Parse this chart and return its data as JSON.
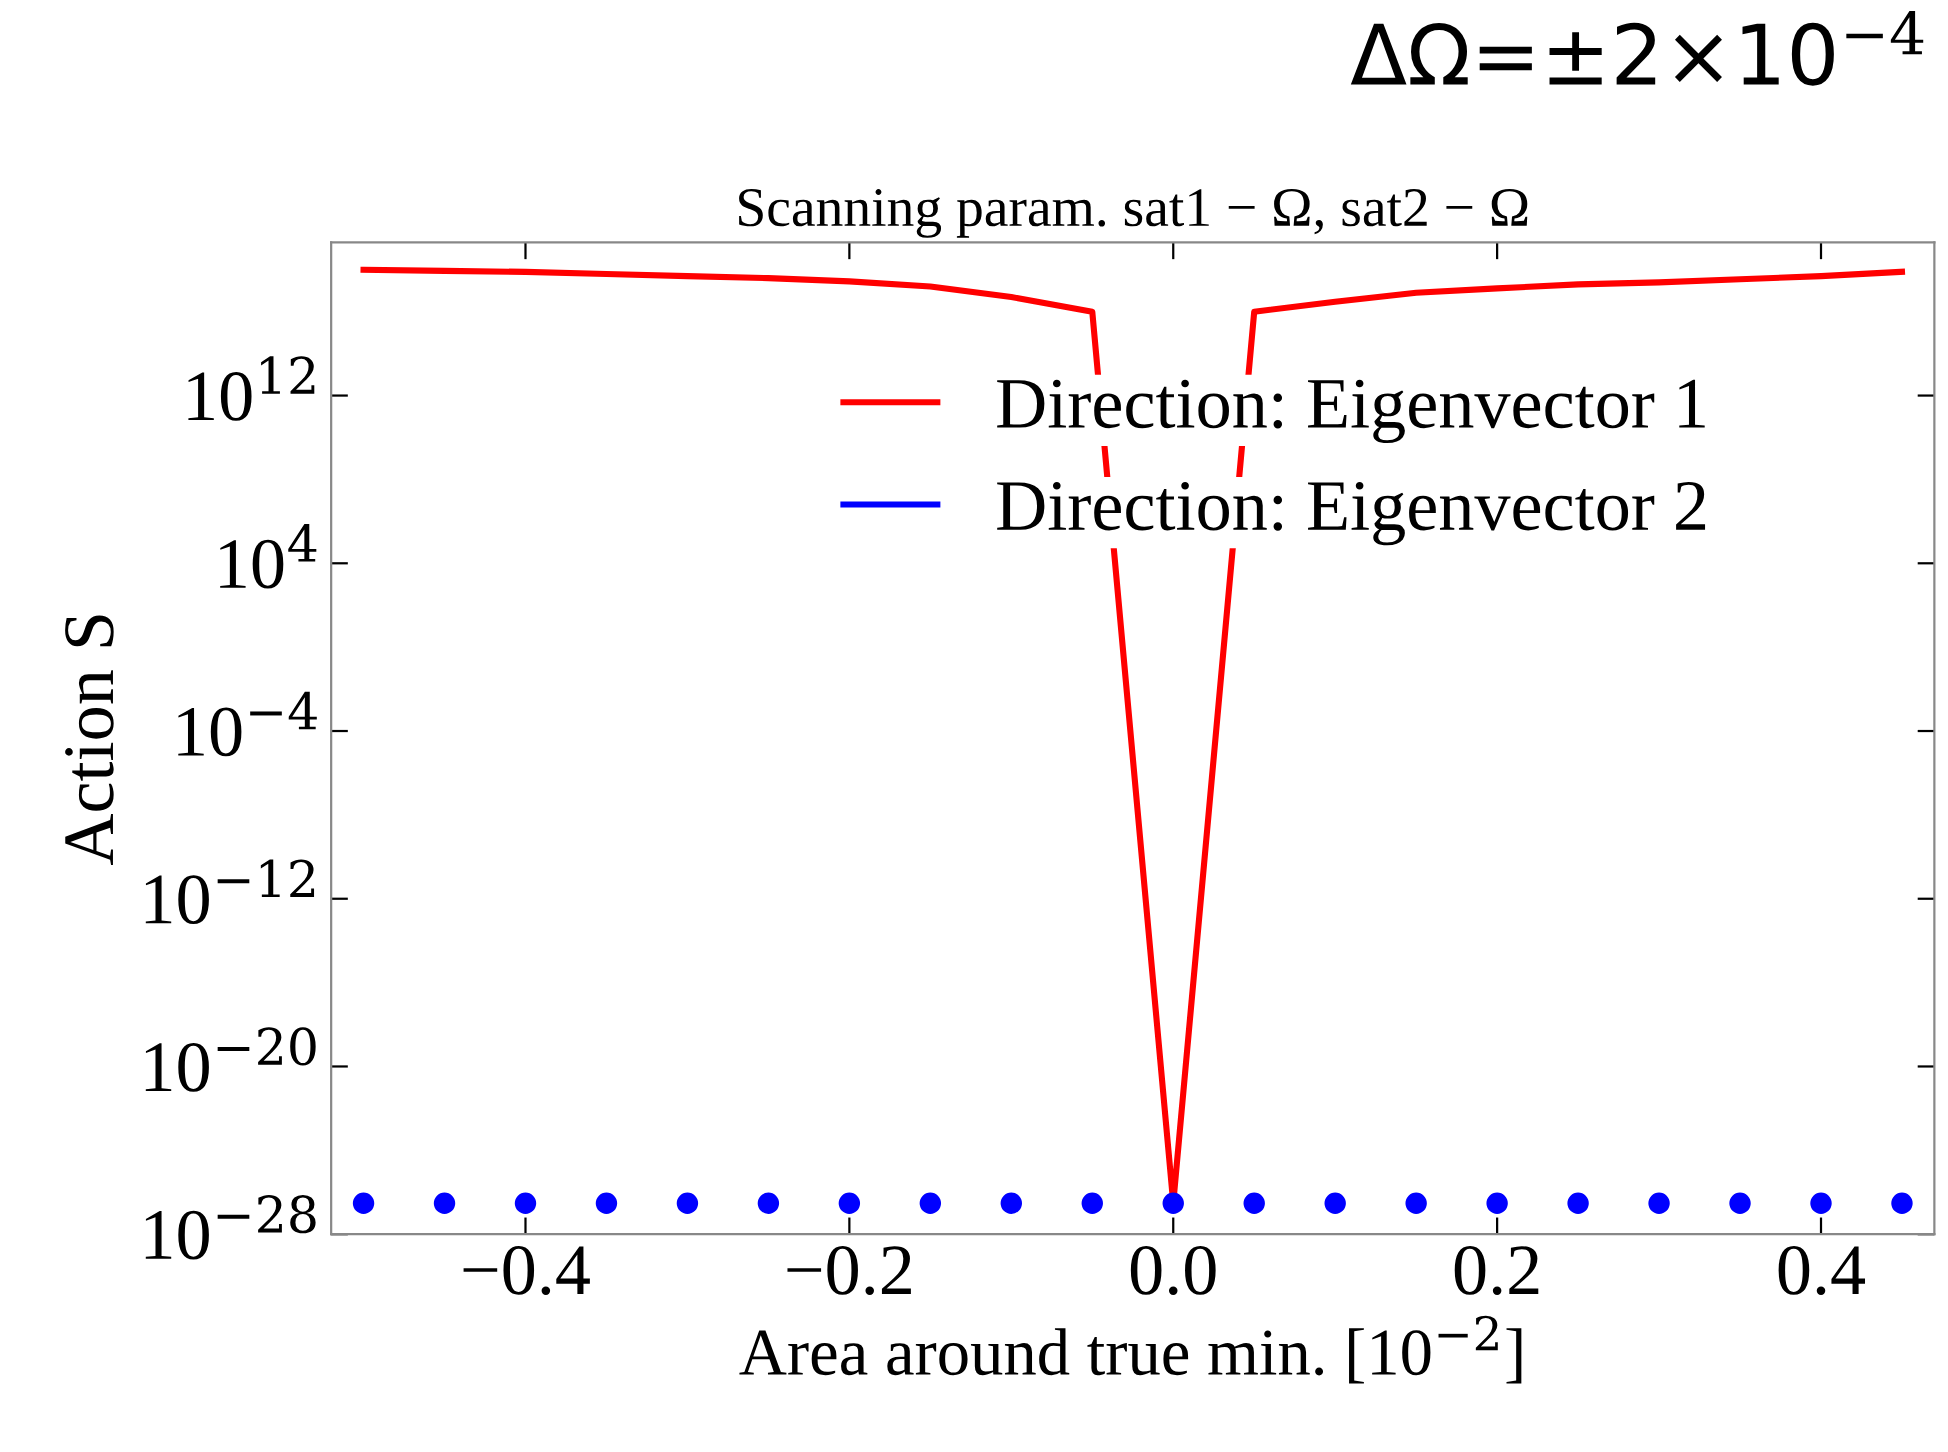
{
  "chart_data": {
    "type": "line",
    "title": "Scanning param. sat1 − Ω, sat2 − Ω",
    "xlabel": "Area around true min. [10$^{−2}$]",
    "ylabel": "Action S",
    "annotations": [
      "ΔΩ=±2×10$^{−4}$"
    ],
    "x": [
      -0.5,
      -0.45,
      -0.4,
      -0.35,
      -0.3,
      -0.25,
      -0.2,
      -0.15,
      -0.1,
      -0.05,
      0.0,
      0.05,
      0.1,
      0.15,
      0.2,
      0.25,
      0.3,
      0.35,
      0.4,
      0.45
    ],
    "series": [
      {
        "name": "Direction: Eigenvector 1",
        "color": "#ff0000",
        "values": [
          1e+18,
          8.9e+17,
          7.9e+17,
          6.3e+17,
          5e+17,
          4e+17,
          2.8e+17,
          1.6e+17,
          5e+16,
          1e+16,
          3e-27,
          1e+16,
          3e+16,
          8e+16,
          1.3e+17,
          2e+17,
          2.5e+17,
          3.5e+17,
          5e+17,
          8e+17
        ]
      },
      {
        "name": "Direction: Eigenvector 2",
        "color": "#0000ff",
        "type": "scatter",
        "marker": "circle",
        "values": [
          3e-27,
          3e-27,
          3e-27,
          3e-27,
          3e-27,
          3e-27,
          3e-27,
          3e-27,
          3e-27,
          3e-27,
          3e-27,
          3e-27,
          3e-27,
          3e-27,
          3e-27,
          3e-27,
          3e-27,
          3e-27,
          3e-27,
          3e-27
        ]
      }
    ],
    "log": "y",
    "xlim": [
      -0.52,
      0.47
    ],
    "ylim": [
      1e-28,
      2e+19
    ],
    "xticks": [
      {
        "value": -0.4,
        "label": "−0.4"
      },
      {
        "value": -0.2,
        "label": "−0.2"
      },
      {
        "value": 0.0,
        "label": "0.0"
      },
      {
        "value": 0.2,
        "label": "0.2"
      },
      {
        "value": 0.4,
        "label": "0.4"
      }
    ],
    "yticks": [
      {
        "value": 1e-28,
        "label": "10$^{−28}$"
      },
      {
        "value": 1e-20,
        "label": "10$^{−20}$"
      },
      {
        "value": 1e-12,
        "label": "10$^{−12}$"
      },
      {
        "value": 0.0001,
        "label": "10$^{−4}$"
      },
      {
        "value": 10000,
        "label": "10$^{4}$"
      },
      {
        "value": 1000000000000.0,
        "label": "10$^{12}$"
      }
    ],
    "grid": false,
    "legend": "top right"
  }
}
